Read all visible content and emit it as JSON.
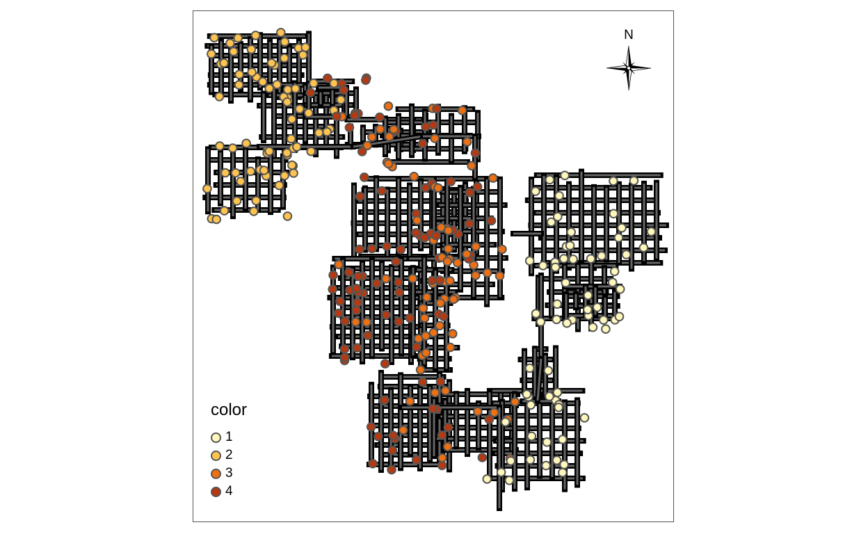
{
  "map": {
    "north_label": "N",
    "legend": {
      "title": "color",
      "items": [
        {
          "label": "1",
          "color": "#FFF7BC"
        },
        {
          "label": "2",
          "color": "#FEC44F"
        },
        {
          "label": "3",
          "color": "#EC7014"
        },
        {
          "label": "4",
          "color": "#B33A12"
        }
      ]
    },
    "colors": {
      "network_fill": "#555555",
      "network_outline": "#000000",
      "point_border": "#555555",
      "frame": "#555555"
    },
    "icons": {
      "north_arrow": "compass-rose-icon"
    }
  }
}
